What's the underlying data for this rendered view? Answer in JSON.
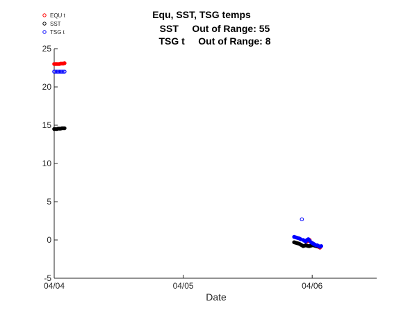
{
  "chart_data": {
    "type": "scatter",
    "title_lines": [
      "Equ, SST, TSG temps",
      "SST     Out of Range: 55",
      "TSG t     Out of Range: 8"
    ],
    "xlabel": "Date",
    "ylabel": "",
    "x_ticks": [
      {
        "value": 0,
        "label": "04/04"
      },
      {
        "value": 1,
        "label": "04/05"
      },
      {
        "value": 2,
        "label": "04/06"
      }
    ],
    "xlim": [
      0,
      2.5
    ],
    "ylim": [
      -5,
      25
    ],
    "y_ticks": [
      -5,
      0,
      5,
      10,
      15,
      20,
      25
    ],
    "grid": false,
    "legend_position": "top-left",
    "series": [
      {
        "name": "EQU t",
        "color": "#ff0000",
        "x": [
          0.0,
          0.01,
          0.02,
          0.03,
          0.04,
          0.05,
          0.06,
          0.07,
          0.08,
          1.96,
          1.97,
          1.98,
          1.99,
          2.0,
          2.01,
          2.02,
          2.03,
          2.04,
          2.05,
          2.06
        ],
        "y": [
          23.0,
          23.0,
          23.0,
          23.0,
          23.0,
          23.05,
          23.05,
          23.05,
          23.1,
          -0.2,
          -0.1,
          0.0,
          -0.3,
          -0.4,
          -0.6,
          -0.7,
          -0.8,
          -0.85,
          -0.9,
          -1.0
        ]
      },
      {
        "name": "SST",
        "color": "#000000",
        "x": [
          0.0,
          0.01,
          0.02,
          0.03,
          0.04,
          0.05,
          0.06,
          0.07,
          0.08,
          1.86,
          1.87,
          1.88,
          1.89,
          1.9,
          1.91,
          1.92,
          1.93,
          1.94,
          1.95,
          1.96,
          1.97,
          1.98,
          1.99,
          2.0,
          2.01,
          2.02,
          2.03,
          2.04,
          2.05
        ],
        "y": [
          14.5,
          14.5,
          14.5,
          14.55,
          14.55,
          14.55,
          14.6,
          14.6,
          14.6,
          -0.3,
          -0.35,
          -0.4,
          -0.45,
          -0.5,
          -0.6,
          -0.7,
          -0.8,
          -0.75,
          -0.7,
          -0.75,
          -0.8,
          -0.8,
          -0.75,
          -0.7,
          -0.7,
          -0.75,
          -0.8,
          -0.8,
          -0.85
        ]
      },
      {
        "name": "TSG t",
        "color": "#0000ff",
        "x": [
          0.0,
          0.01,
          0.02,
          0.03,
          0.04,
          0.05,
          0.06,
          0.07,
          0.08,
          1.86,
          1.87,
          1.88,
          1.89,
          1.9,
          1.91,
          1.92,
          1.93,
          1.94,
          1.95,
          1.96,
          1.97,
          1.98,
          1.99,
          2.0,
          2.01,
          2.02,
          2.03,
          2.04,
          2.05,
          2.06,
          2.07
        ],
        "y": [
          22.0,
          22.0,
          22.0,
          22.0,
          22.0,
          22.0,
          22.0,
          22.0,
          22.0,
          0.4,
          0.35,
          0.3,
          0.25,
          0.2,
          0.1,
          2.7,
          0.0,
          -0.1,
          -0.2,
          0.0,
          0.1,
          -0.1,
          -0.3,
          -0.4,
          -0.5,
          -0.6,
          -0.7,
          -0.7,
          -0.8,
          -0.9,
          -0.8
        ]
      }
    ]
  }
}
